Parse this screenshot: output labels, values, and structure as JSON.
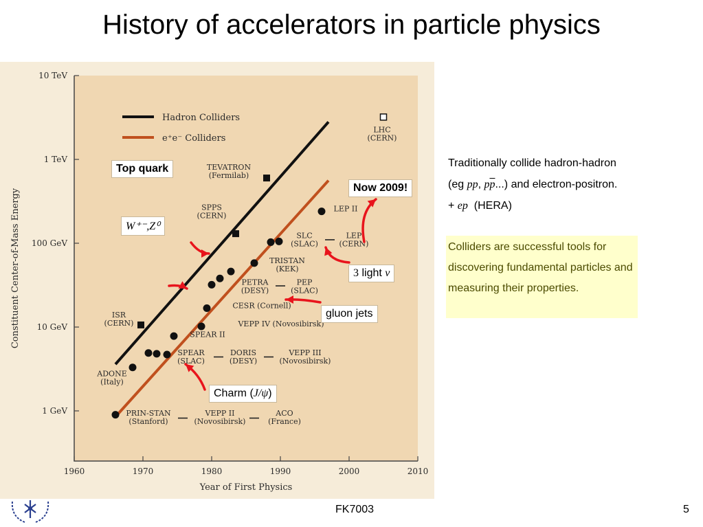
{
  "slide": {
    "title": "History of accelerators in particle physics",
    "footer_center": "FK7003",
    "page_number": "5"
  },
  "chart_data": {
    "type": "scatter",
    "xlabel": "Year of First Physics",
    "ylabel": "Constituent Center-of-Mass Energy",
    "xlim": [
      1960,
      2010
    ],
    "y_scale": "log",
    "ylim_GeV": [
      0.3,
      10000
    ],
    "x_ticks": [
      1960,
      1970,
      1980,
      1990,
      2000,
      2010
    ],
    "y_ticks": [
      {
        "value": 1,
        "label": "1 GeV"
      },
      {
        "value": 10,
        "label": "10 GeV"
      },
      {
        "value": 100,
        "label": "100 GeV"
      },
      {
        "value": 1000,
        "label": "1 TeV"
      },
      {
        "value": 10000,
        "label": "10 TeV"
      }
    ],
    "legend_position": "top-left",
    "background_color": "#f0d7b2",
    "series": [
      {
        "name": "Hadron Colliders",
        "color": "#111111",
        "trend_line": [
          [
            1966,
            3.6
          ],
          [
            1997,
            2800
          ]
        ],
        "points": [
          {
            "x": 1969.7,
            "y": 10.6,
            "marker": "square"
          },
          {
            "x": 1983.5,
            "y": 130,
            "marker": "square"
          },
          {
            "x": 1988,
            "y": 600,
            "marker": "square"
          },
          {
            "x": 2005,
            "y": 3200,
            "marker": "open-square"
          }
        ]
      },
      {
        "name": "e⁺e⁻ Colliders",
        "color": "#c0501e",
        "trend_line": [
          [
            1966,
            0.85
          ],
          [
            1997,
            560
          ]
        ],
        "points": [
          {
            "x": 1966,
            "y": 0.9
          },
          {
            "x": 1968.5,
            "y": 3.3
          },
          {
            "x": 1970.8,
            "y": 4.9
          },
          {
            "x": 1972,
            "y": 4.8
          },
          {
            "x": 1973.5,
            "y": 4.7
          },
          {
            "x": 1974.5,
            "y": 7.8
          },
          {
            "x": 1978.5,
            "y": 10.2
          },
          {
            "x": 1979.3,
            "y": 16.8
          },
          {
            "x": 1980,
            "y": 32
          },
          {
            "x": 1981.2,
            "y": 38
          },
          {
            "x": 1982.8,
            "y": 46
          },
          {
            "x": 1986.2,
            "y": 58
          },
          {
            "x": 1988.6,
            "y": 103
          },
          {
            "x": 1989.8,
            "y": 105
          },
          {
            "x": 1996,
            "y": 240
          }
        ]
      }
    ],
    "labels": [
      {
        "text": "LHC",
        "sub": "(CERN)",
        "x": 2004.8,
        "y": 2100
      },
      {
        "text": "TEVATRON",
        "sub": "(Fermilab)",
        "x": 1982.5,
        "y": 750
      },
      {
        "text": "SPPS",
        "sub": "(CERN)",
        "x": 1980,
        "y": 250
      },
      {
        "text": "LEP II",
        "sub": "",
        "x": 1999.5,
        "y": 240
      },
      {
        "text": "SLC",
        "sub": "(SLAC)",
        "x": 1993.5,
        "y": 115
      },
      {
        "text": "LEP",
        "sub": "(CERN)",
        "x": 2000.7,
        "y": 115
      },
      {
        "text": "TRISTAN",
        "sub": "(KEK)",
        "x": 1991,
        "y": 58
      },
      {
        "text": "PETRA",
        "sub": "(DESY)",
        "x": 1986.3,
        "y": 32
      },
      {
        "text": "PEP",
        "sub": "(SLAC)",
        "x": 1993.5,
        "y": 32
      },
      {
        "text": "CESR (Cornell)",
        "sub": "",
        "x": 1987.3,
        "y": 16.8
      },
      {
        "text": "VEPP IV (Novosibirsk)",
        "sub": "",
        "x": 1990.1,
        "y": 10.2
      },
      {
        "text": "SPEAR II",
        "sub": "",
        "x": 1979.4,
        "y": 7.6
      },
      {
        "text": "ISR",
        "sub": "(CERN)",
        "x": 1966.5,
        "y": 13
      },
      {
        "text": "SPEAR",
        "sub": "(SLAC)",
        "x": 1977,
        "y": 4.6
      },
      {
        "text": "DORIS",
        "sub": "(DESY)",
        "x": 1984.6,
        "y": 4.6
      },
      {
        "text": "VEPP III",
        "sub": "(Novosibirsk)",
        "x": 1993.6,
        "y": 4.6
      },
      {
        "text": "ADONE",
        "sub": "(Italy)",
        "x": 1965.5,
        "y": 2.6
      },
      {
        "text": "PRIN-STAN",
        "sub": "(Stanford)",
        "x": 1970.8,
        "y": 0.88
      },
      {
        "text": "VEPP II",
        "sub": "(Novosibirsk)",
        "x": 1981.2,
        "y": 0.88
      },
      {
        "text": "ACO",
        "sub": "(France)",
        "x": 1990.6,
        "y": 0.88
      }
    ],
    "dashes": [
      {
        "x": 1975.8,
        "y": 0.82
      },
      {
        "x": 1986.2,
        "y": 0.82
      },
      {
        "x": 1981,
        "y": 4.4
      },
      {
        "x": 1988.3,
        "y": 4.4
      },
      {
        "x": 1990,
        "y": 31
      },
      {
        "x": 1997.2,
        "y": 110
      }
    ]
  },
  "callouts": {
    "top_quark": "Top quark",
    "w_z": "W⁺⁻,Z⁰",
    "now_2009": "Now 2009!",
    "three_light_num": "3",
    "three_light_word": "light",
    "three_light_nu": "ν",
    "gluon_jets": "gluon jets",
    "charm_prefix": "Charm (",
    "charm_symbol": "J/ψ",
    "charm_suffix": ")"
  },
  "annotation_color": "#e8141c",
  "side_text": {
    "line1": "Traditionally collide hadron-hadron",
    "line2_prefix": "(eg ",
    "pp": "pp",
    "comma": ", ",
    "p": "p",
    "pbar": "p",
    "line2_suffix": "...) and electron-positron.",
    "line3_prefix": "+ ",
    "ep": "ep",
    "line3_suffix": "  (HERA)"
  },
  "highlight_text": "Colliders are successful tools for discovering fundamental particles and measuring their properties.",
  "highlight_color": "#ffffcc"
}
